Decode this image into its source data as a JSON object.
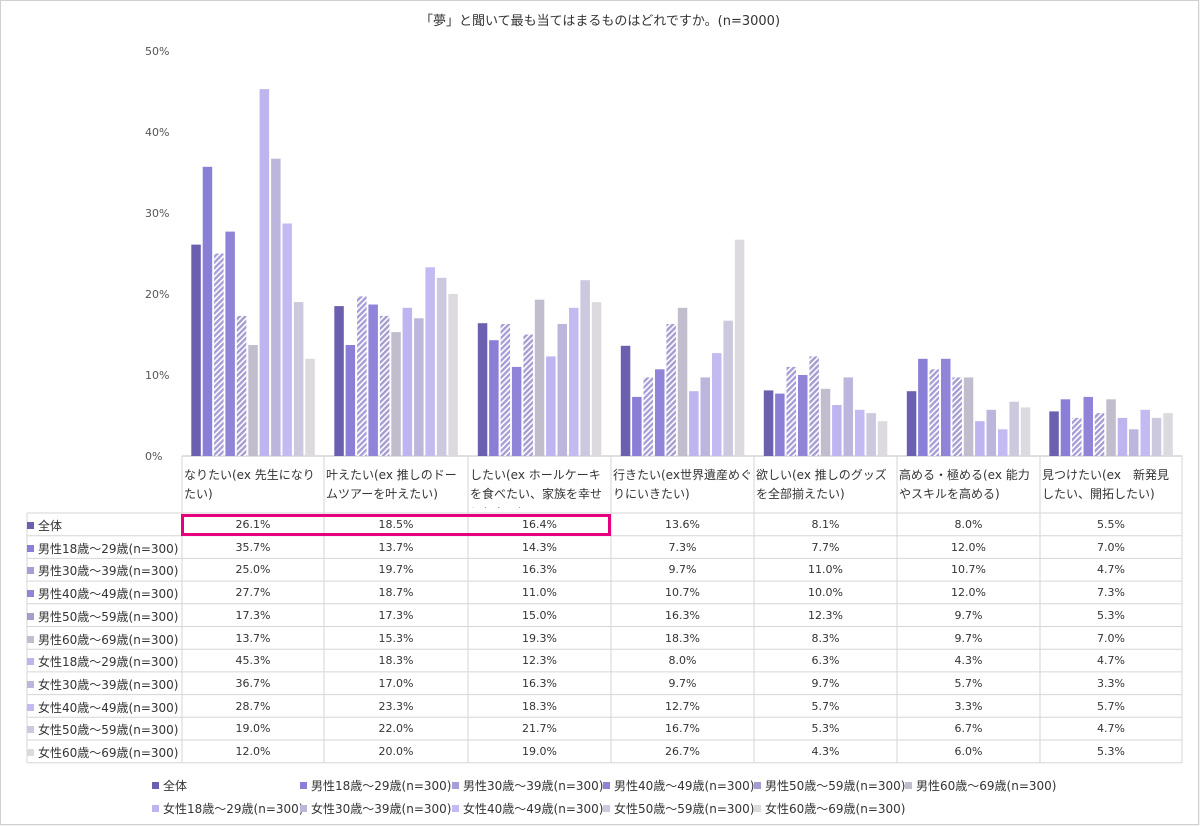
{
  "chart_data": {
    "type": "bar",
    "title": "「夢」と聞いて最も当てはまるものはどれですか。(n=3000)",
    "ylim": [
      0,
      50
    ],
    "yticks": [
      "0%",
      "10%",
      "20%",
      "30%",
      "40%",
      "50%"
    ],
    "categories": [
      "なりたい(ex 先生になりたい)",
      "叶えたい(ex 推しのドームツアーを叶えたい)",
      "したい(ex ホールケーキを食べたい、家族を幸せにしたい)",
      "行きたい(ex世界遺産めぐりにいきたい)",
      "欲しい(ex 推しのグッズを全部揃えたい)",
      "高める・極める(ex 能力やスキルを高める)",
      "見つけたい(ex　新発見したい、開拓したい)"
    ],
    "series": [
      {
        "name": "全体",
        "color": "#6b5fb0",
        "hatch": false,
        "values": [
          26.1,
          18.5,
          16.4,
          13.6,
          8.1,
          8.0,
          5.5
        ]
      },
      {
        "name": "男性18歳～29歳(n=300)",
        "color": "#8a7fd6",
        "hatch": false,
        "values": [
          35.7,
          13.7,
          14.3,
          7.3,
          7.7,
          12.0,
          7.0
        ]
      },
      {
        "name": "男性30歳～39歳(n=300)",
        "color": "#a79ed8",
        "hatch": true,
        "values": [
          25.0,
          19.7,
          16.3,
          9.7,
          11.0,
          10.7,
          4.7
        ]
      },
      {
        "name": "男性40歳～49歳(n=300)",
        "color": "#8f84d8",
        "hatch": false,
        "values": [
          27.7,
          18.7,
          11.0,
          10.7,
          10.0,
          12.0,
          7.3
        ]
      },
      {
        "name": "男性50歳～59歳(n=300)",
        "color": "#a59cd2",
        "hatch": true,
        "values": [
          17.3,
          17.3,
          15.0,
          16.3,
          12.3,
          9.7,
          5.3
        ]
      },
      {
        "name": "男性60歳～69歳(n=300)",
        "color": "#c2bdcc",
        "hatch": false,
        "values": [
          13.7,
          15.3,
          19.3,
          18.3,
          8.3,
          9.7,
          7.0
        ]
      },
      {
        "name": "女性18歳～29歳(n=300)",
        "color": "#bdb4f0",
        "hatch": false,
        "values": [
          45.3,
          18.3,
          12.3,
          8.0,
          6.3,
          4.3,
          4.7
        ]
      },
      {
        "name": "女性30歳～39歳(n=300)",
        "color": "#bcb6dc",
        "hatch": false,
        "values": [
          36.7,
          17.0,
          16.3,
          9.7,
          9.7,
          5.7,
          3.3
        ]
      },
      {
        "name": "女性40歳～49歳(n=300)",
        "color": "#c4baf2",
        "hatch": false,
        "values": [
          28.7,
          23.3,
          18.3,
          12.7,
          5.7,
          3.3,
          5.7
        ]
      },
      {
        "name": "女性50歳～59歳(n=300)",
        "color": "#ccc8de",
        "hatch": false,
        "values": [
          19.0,
          22.0,
          21.7,
          16.7,
          5.3,
          6.7,
          4.7
        ]
      },
      {
        "name": "女性60歳～69歳(n=300)",
        "color": "#dcdadf",
        "hatch": false,
        "values": [
          12.0,
          20.0,
          19.0,
          26.7,
          4.3,
          6.0,
          5.3
        ]
      }
    ]
  },
  "table": {
    "rows": [
      {
        "label": "全体",
        "cells": [
          "26.1%",
          "18.5%",
          "16.4%",
          "13.6%",
          "8.1%",
          "8.0%",
          "5.5%"
        ]
      },
      {
        "label": "男性18歳～29歳(n=300)",
        "cells": [
          "35.7%",
          "13.7%",
          "14.3%",
          "7.3%",
          "7.7%",
          "12.0%",
          "7.0%"
        ]
      },
      {
        "label": "男性30歳～39歳(n=300)",
        "cells": [
          "25.0%",
          "19.7%",
          "16.3%",
          "9.7%",
          "11.0%",
          "10.7%",
          "4.7%"
        ]
      },
      {
        "label": "男性40歳～49歳(n=300)",
        "cells": [
          "27.7%",
          "18.7%",
          "11.0%",
          "10.7%",
          "10.0%",
          "12.0%",
          "7.3%"
        ]
      },
      {
        "label": "男性50歳～59歳(n=300)",
        "cells": [
          "17.3%",
          "17.3%",
          "15.0%",
          "16.3%",
          "12.3%",
          "9.7%",
          "5.3%"
        ]
      },
      {
        "label": "男性60歳～69歳(n=300)",
        "cells": [
          "13.7%",
          "15.3%",
          "19.3%",
          "18.3%",
          "8.3%",
          "9.7%",
          "7.0%"
        ]
      },
      {
        "label": "女性18歳～29歳(n=300)",
        "cells": [
          "45.3%",
          "18.3%",
          "12.3%",
          "8.0%",
          "6.3%",
          "4.3%",
          "4.7%"
        ]
      },
      {
        "label": "女性30歳～39歳(n=300)",
        "cells": [
          "36.7%",
          "17.0%",
          "16.3%",
          "9.7%",
          "9.7%",
          "5.7%",
          "3.3%"
        ]
      },
      {
        "label": "女性40歳～49歳(n=300)",
        "cells": [
          "28.7%",
          "23.3%",
          "18.3%",
          "12.7%",
          "5.7%",
          "3.3%",
          "5.7%"
        ]
      },
      {
        "label": "女性50歳～59歳(n=300)",
        "cells": [
          "19.0%",
          "22.0%",
          "21.7%",
          "16.7%",
          "5.3%",
          "6.7%",
          "4.7%"
        ]
      },
      {
        "label": "女性60歳～69歳(n=300)",
        "cells": [
          "12.0%",
          "20.0%",
          "19.0%",
          "26.7%",
          "4.3%",
          "6.0%",
          "5.3%"
        ]
      }
    ]
  },
  "highlight_color": "#e6007e"
}
